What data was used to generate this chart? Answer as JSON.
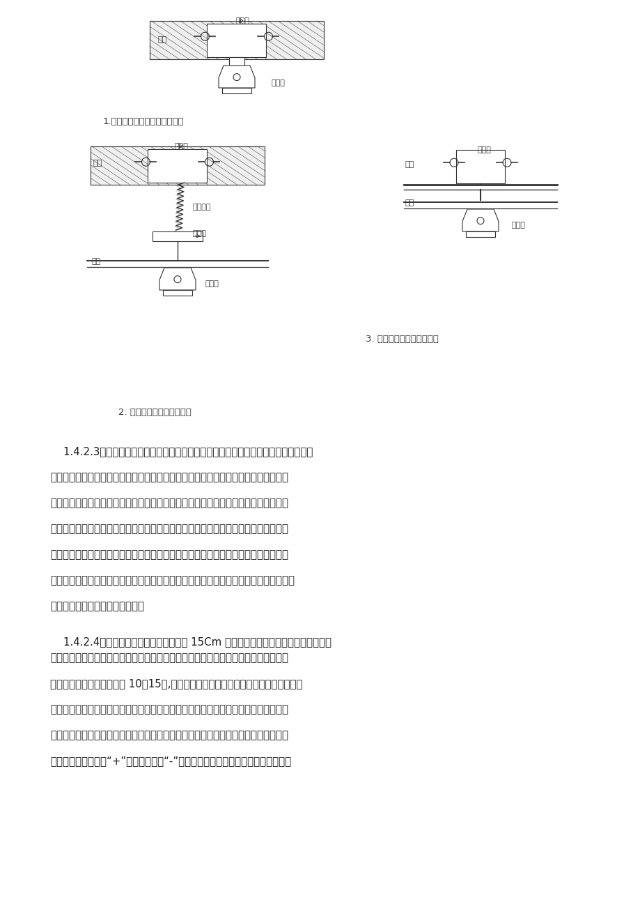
{
  "background_color": "#ffffff",
  "page_width": 9.2,
  "page_height": 13.01,
  "text_color": "#1a1a1a",
  "diagram_color": "#333333",
  "label_diagram1": "1.探测器在混凝土板上安装方法",
  "label_diagram2": "2. 探测器在吹顶上安装方法",
  "label_diagram3": "3. 探测器在吹顶上安装方法",
  "text_lines": [
    "    1.4.2.3探测器的固定主要是底座的固定：探测器属于精密电子仪器部件，在安装施工",
    "的交叉作业中，一定要保护好探测器不被损坏。在安装探测时先安装探测器的底座，待",
    "整个火灾报警系统全部安装完毕时才最后安装探头并进行必要调试工作。本工程探测器",
    "基本是在吹顶内安装，可用接线盒安装在顶板上面，根据探测器的安装位置，先在顶板",
    "上打个小孔，根据孔的位置，将接线盒与配管连接好，配至小孔位置，将保护管固定在",
    "吹顶的龙骨上或吹顶内的支、吹架上。接线盒应紧贴在顶板上面，然后对孔板上的小孔扯",
    "大，扯大面积不应大于盒口面积。",
    "    1.4.2.4探测器的外接导线应留有不小于 15Cm 的余量，入端处应有明显标志。底座孔",
    "穿线后宜封堵，安装完毕后的探测器应采取保护措施。接线安装时，先将预留在盒内的",
    "导线剥去绵缘层，露出线芯 10～15㎜,剥线时注意不要碘採编号套管，将剥好的线芯顺",
    "时针连接在与探测器底座的各级相对应的接线端子上，接线完毕用万用表检查两条总线",
    "之间有无短路现象。导线连接必须可靠压接或焼接。当采用焼接时，不得使用带腑蚀性",
    "的助焼剂。探测器的“+”线应为红色，“-”线应为兰色，其余线应根据不同用途采用"
  ]
}
